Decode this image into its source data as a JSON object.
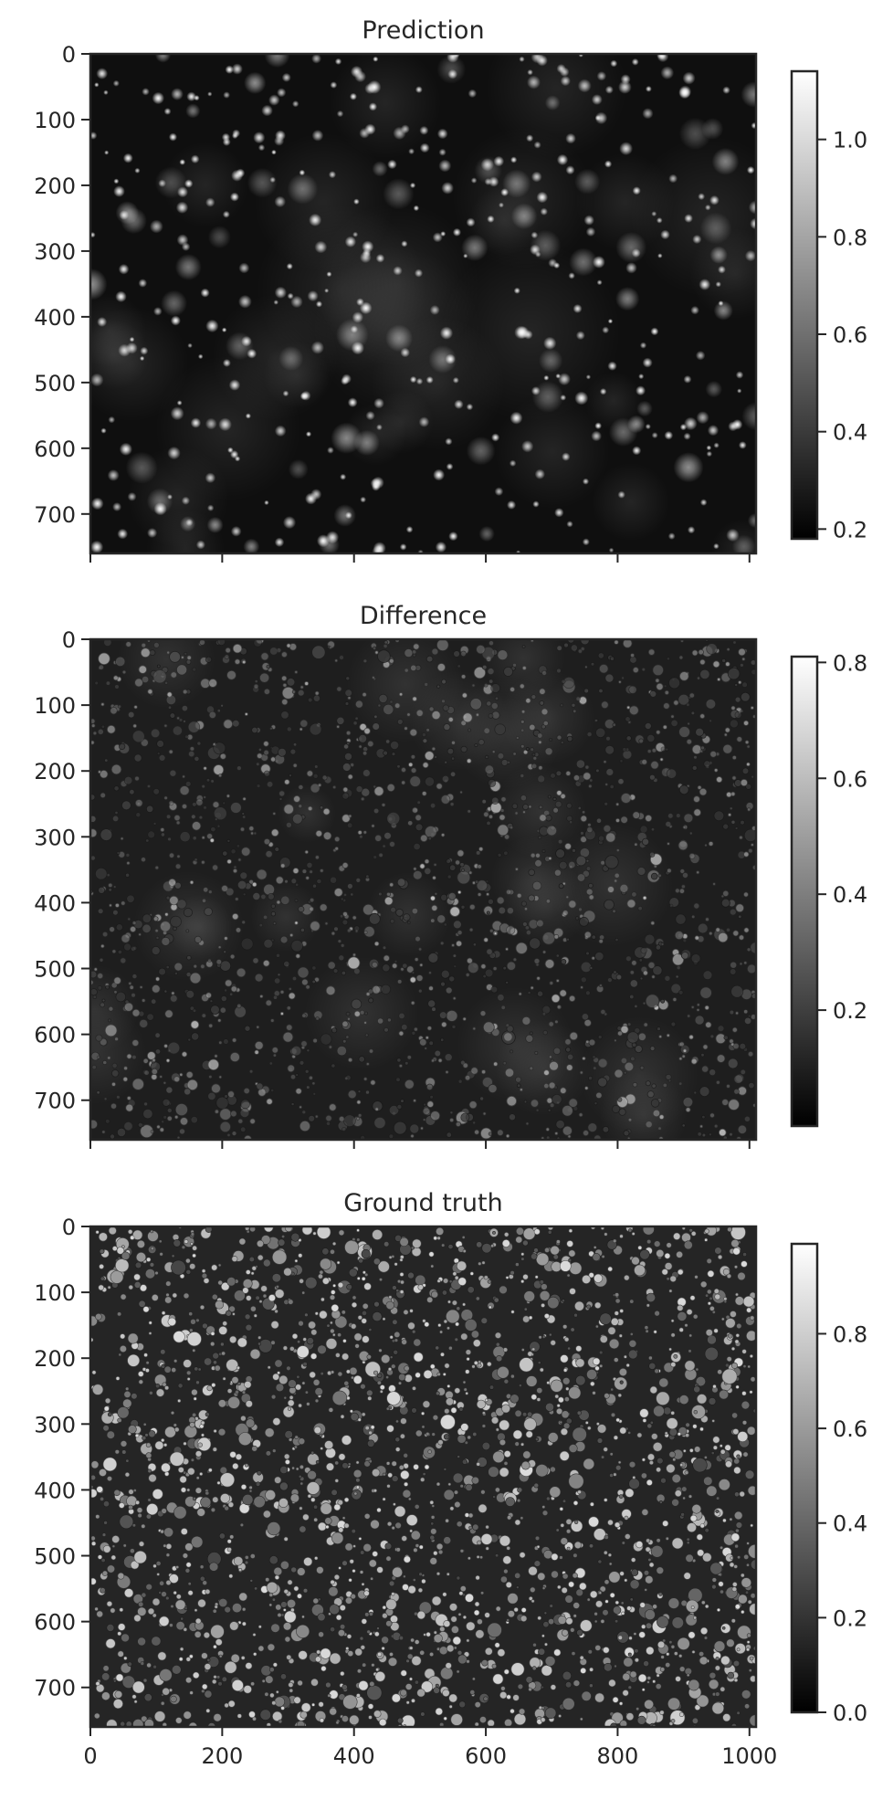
{
  "chart_data": [
    {
      "type": "heatmap",
      "title": "Prediction",
      "x_range": [
        0,
        1010
      ],
      "y_range": [
        0,
        760
      ],
      "x_ticks": [
        0,
        200,
        400,
        600,
        800,
        1000
      ],
      "x_tick_labels_visible": false,
      "y_ticks": [
        0,
        100,
        200,
        300,
        400,
        500,
        600,
        700
      ],
      "colormap": "gray",
      "colorbar": {
        "range": [
          0.18,
          1.14
        ],
        "ticks": [
          0.2,
          0.4,
          0.6,
          0.8,
          1.0
        ],
        "tick_labels": [
          "0.2",
          "0.4",
          "0.6",
          "0.8",
          "1.0"
        ]
      }
    },
    {
      "type": "heatmap",
      "title": "Difference",
      "x_range": [
        0,
        1010
      ],
      "y_range": [
        0,
        760
      ],
      "x_ticks": [
        0,
        200,
        400,
        600,
        800,
        1000
      ],
      "x_tick_labels_visible": false,
      "y_ticks": [
        0,
        100,
        200,
        300,
        400,
        500,
        600,
        700
      ],
      "colormap": "gray",
      "colorbar": {
        "range": [
          0.0,
          0.81
        ],
        "ticks": [
          0.2,
          0.4,
          0.6,
          0.8
        ],
        "tick_labels": [
          "0.2",
          "0.4",
          "0.6",
          "0.8"
        ]
      }
    },
    {
      "type": "heatmap",
      "title": "Ground truth",
      "x_range": [
        0,
        1010
      ],
      "y_range": [
        0,
        760
      ],
      "x_ticks": [
        0,
        200,
        400,
        600,
        800,
        1000
      ],
      "x_tick_labels_visible": true,
      "y_ticks": [
        0,
        100,
        200,
        300,
        400,
        500,
        600,
        700
      ],
      "colormap": "gray",
      "colorbar": {
        "range": [
          0.0,
          0.99
        ],
        "ticks": [
          0.0,
          0.2,
          0.4,
          0.6,
          0.8
        ],
        "tick_labels": [
          "0.0",
          "0.2",
          "0.4",
          "0.6",
          "0.8"
        ]
      }
    }
  ]
}
